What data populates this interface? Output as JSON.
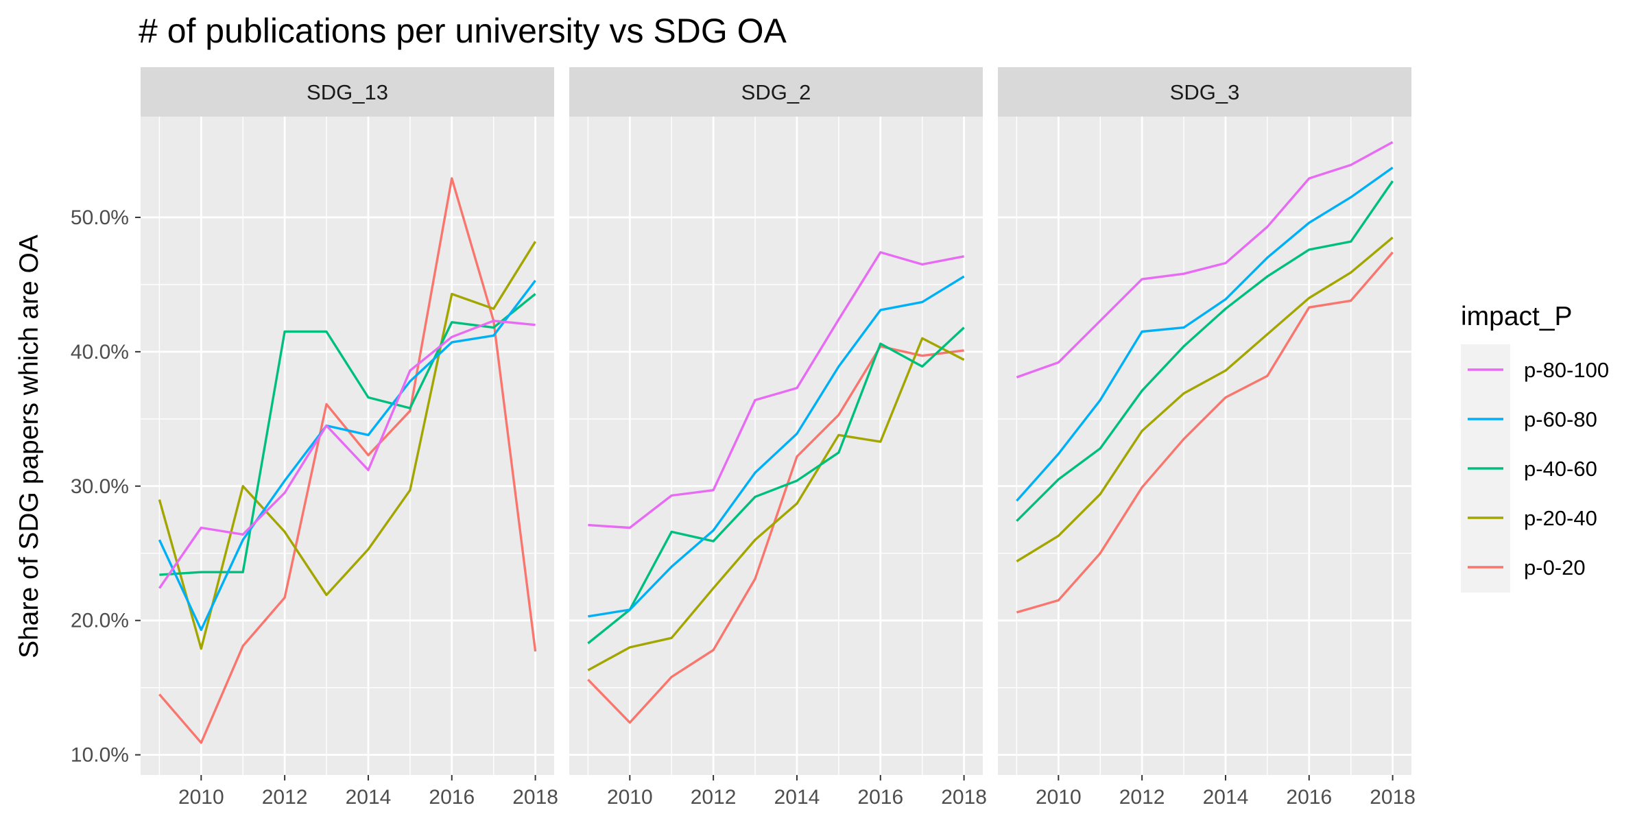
{
  "chart_data": {
    "type": "line",
    "title": "# of publications per university vs SDG OA",
    "xlabel": "",
    "ylabel": "Share of SDG papers which are OA",
    "x": [
      2009,
      2010,
      2011,
      2012,
      2013,
      2014,
      2015,
      2016,
      2017,
      2018
    ],
    "x_ticks": [
      "2010",
      "2012",
      "2014",
      "2016",
      "2018"
    ],
    "y_ticks": [
      "10.0%",
      "20.0%",
      "30.0%",
      "40.0%",
      "50.0%"
    ],
    "ylim": [
      0.085,
      0.575
    ],
    "xlim": [
      2008.55,
      2018.45
    ],
    "grid": true,
    "legend_title": "impact_P",
    "legend_position": "right",
    "legend": [
      {
        "key": "p-80-100",
        "label": "p-80-100",
        "color": "#E76BF3"
      },
      {
        "key": "p-60-80",
        "label": "p-60-80",
        "color": "#00B0F6"
      },
      {
        "key": "p-40-60",
        "label": "p-40-60",
        "color": "#00BF7D"
      },
      {
        "key": "p-20-40",
        "label": "p-20-40",
        "color": "#A3A500"
      },
      {
        "key": "p-0-20",
        "label": "p-0-20",
        "color": "#F8766D"
      }
    ],
    "panels": [
      {
        "label": "SDG_13",
        "series": [
          {
            "name": "p-0-20",
            "values": [
              0.145,
              0.109,
              0.181,
              0.217,
              0.361,
              0.323,
              0.356,
              0.529,
              0.423,
              0.177
            ]
          },
          {
            "name": "p-20-40",
            "values": [
              0.29,
              0.179,
              0.3,
              0.266,
              0.219,
              0.253,
              0.297,
              0.443,
              0.432,
              0.482
            ]
          },
          {
            "name": "p-40-60",
            "values": [
              0.234,
              0.236,
              0.236,
              0.415,
              0.415,
              0.366,
              0.358,
              0.422,
              0.418,
              0.443
            ]
          },
          {
            "name": "p-60-80",
            "values": [
              0.26,
              0.193,
              0.26,
              0.304,
              0.345,
              0.338,
              0.378,
              0.407,
              0.412,
              0.453
            ]
          },
          {
            "name": "p-80-100",
            "values": [
              0.224,
              0.269,
              0.264,
              0.295,
              0.345,
              0.312,
              0.386,
              0.411,
              0.423,
              0.42
            ]
          }
        ]
      },
      {
        "label": "SDG_2",
        "series": [
          {
            "name": "p-0-20",
            "values": [
              0.156,
              0.124,
              0.158,
              0.178,
              0.231,
              0.322,
              0.353,
              0.404,
              0.397,
              0.401
            ]
          },
          {
            "name": "p-20-40",
            "values": [
              0.163,
              0.18,
              0.187,
              0.224,
              0.26,
              0.287,
              0.338,
              0.333,
              0.41,
              0.394
            ]
          },
          {
            "name": "p-40-60",
            "values": [
              0.183,
              0.208,
              0.266,
              0.259,
              0.292,
              0.304,
              0.325,
              0.406,
              0.389,
              0.418
            ]
          },
          {
            "name": "p-60-80",
            "values": [
              0.203,
              0.208,
              0.24,
              0.267,
              0.31,
              0.339,
              0.389,
              0.431,
              0.437,
              0.456
            ]
          },
          {
            "name": "p-80-100",
            "values": [
              0.271,
              0.269,
              0.293,
              0.297,
              0.364,
              0.373,
              0.424,
              0.474,
              0.465,
              0.471
            ]
          }
        ]
      },
      {
        "label": "SDG_3",
        "series": [
          {
            "name": "p-0-20",
            "values": [
              0.206,
              0.215,
              0.25,
              0.299,
              0.335,
              0.366,
              0.382,
              0.433,
              0.438,
              0.474
            ]
          },
          {
            "name": "p-20-40",
            "values": [
              0.244,
              0.263,
              0.294,
              0.341,
              0.369,
              0.386,
              0.413,
              0.44,
              0.459,
              0.485
            ]
          },
          {
            "name": "p-40-60",
            "values": [
              0.274,
              0.305,
              0.328,
              0.371,
              0.404,
              0.432,
              0.456,
              0.476,
              0.482,
              0.527
            ]
          },
          {
            "name": "p-60-80",
            "values": [
              0.289,
              0.324,
              0.364,
              0.415,
              0.418,
              0.439,
              0.47,
              0.496,
              0.515,
              0.537
            ]
          },
          {
            "name": "p-80-100",
            "values": [
              0.381,
              0.392,
              0.423,
              0.454,
              0.458,
              0.466,
              0.493,
              0.529,
              0.539,
              0.556
            ]
          }
        ]
      }
    ]
  }
}
